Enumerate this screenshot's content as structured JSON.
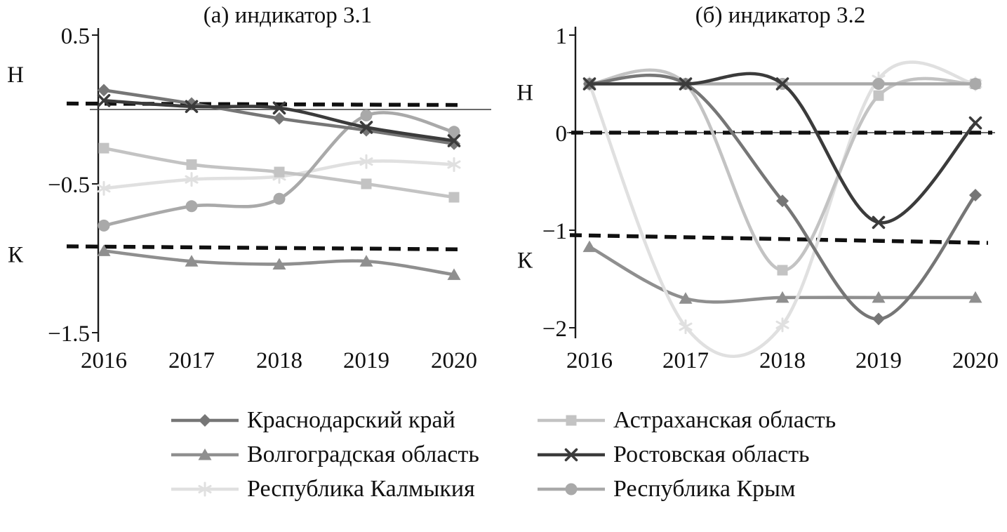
{
  "figure": {
    "background": "#ffffff",
    "text_color": "#111111",
    "dashed_line_color": "#101010"
  },
  "legend": {
    "items": [
      {
        "key": "krasnodar",
        "label": "Краснодарский край",
        "marker": "diamond",
        "color": "#767676"
      },
      {
        "key": "astrakhan",
        "label": "Астраханская область",
        "marker": "square",
        "color": "#c3c3c3"
      },
      {
        "key": "volgograd",
        "label": "Волгоградская область",
        "marker": "triangle",
        "color": "#8f8f8f"
      },
      {
        "key": "rostov",
        "label": "Ростовская область",
        "marker": "x",
        "color": "#3b3b3b"
      },
      {
        "key": "kalmykia",
        "label": "Республика Калмыкия",
        "marker": "asterisk",
        "color": "#e0e0e0"
      },
      {
        "key": "crimea",
        "label": "Республика Крым",
        "marker": "circle",
        "color": "#a9a9a9"
      }
    ]
  },
  "chart_data": [
    {
      "type": "line",
      "title": "(а) индикатор 3.1",
      "x": [
        "2016",
        "2017",
        "2018",
        "2019",
        "2020"
      ],
      "ylim": [
        -1.5,
        0.5
      ],
      "grid": false,
      "legend_position": "bottom-shared",
      "yticks": [
        {
          "value": 0.5,
          "label": "0.5"
        },
        {
          "value": -0.5,
          "label": "−0.5"
        },
        {
          "value": -1.5,
          "label": "−1.5"
        }
      ],
      "zone_labels": [
        {
          "text": "Н",
          "value": 0.24
        },
        {
          "text": "К",
          "value": -0.97
        }
      ],
      "dashed_lines": [
        {
          "from": 0.04,
          "to": 0.03
        },
        {
          "from": -0.92,
          "to": -0.94
        }
      ],
      "series": [
        {
          "name": "Краснодарский край",
          "values": [
            0.13,
            0.04,
            -0.06,
            -0.14,
            -0.23
          ]
        },
        {
          "name": "Астраханская область",
          "values": [
            -0.26,
            -0.37,
            -0.42,
            -0.5,
            -0.59
          ]
        },
        {
          "name": "Волгоградская область",
          "values": [
            -0.95,
            -1.02,
            -1.04,
            -1.02,
            -1.11
          ]
        },
        {
          "name": "Ростовская область",
          "values": [
            0.06,
            0.02,
            0.01,
            -0.12,
            -0.21
          ]
        },
        {
          "name": "Республика Калмыкия",
          "values": [
            -0.53,
            -0.47,
            -0.45,
            -0.35,
            -0.37
          ]
        },
        {
          "name": "Республика Крым",
          "values": [
            -0.78,
            -0.65,
            -0.6,
            -0.04,
            -0.15
          ]
        }
      ]
    },
    {
      "type": "line",
      "title": "(б) индикатор 3.2",
      "x": [
        "2016",
        "2017",
        "2018",
        "2019",
        "2020"
      ],
      "ylim": [
        -2,
        1
      ],
      "grid": false,
      "legend_position": "bottom-shared",
      "yticks": [
        {
          "value": 1,
          "label": "1"
        },
        {
          "value": 0,
          "label": "0"
        },
        {
          "value": -1,
          "label": "−1"
        },
        {
          "value": -2,
          "label": "−2"
        }
      ],
      "zone_labels": [
        {
          "text": "Н",
          "value": 0.42
        },
        {
          "text": "К",
          "value": -1.3
        }
      ],
      "dashed_lines": [
        {
          "from": 0,
          "to": 0
        },
        {
          "from": -1.05,
          "to": -1.13
        }
      ],
      "series": [
        {
          "name": "Краснодарский край",
          "values": [
            0.5,
            0.5,
            -0.7,
            -1.91,
            -0.64
          ]
        },
        {
          "name": "Астраханская область",
          "values": [
            0.5,
            0.5,
            -1.41,
            0.38,
            0.5
          ]
        },
        {
          "name": "Волгоградская область",
          "values": [
            -1.17,
            -1.7,
            -1.69,
            -1.69,
            -1.69
          ]
        },
        {
          "name": "Ростовская область",
          "values": [
            0.5,
            0.5,
            0.5,
            -0.92,
            0.1
          ]
        },
        {
          "name": "Республика Калмыкия",
          "values": [
            0.5,
            -1.99,
            -1.97,
            0.55,
            0.5
          ]
        },
        {
          "name": "Республика Крым",
          "values": [
            0.5,
            0.5,
            0.5,
            0.5,
            0.5
          ]
        }
      ]
    }
  ]
}
